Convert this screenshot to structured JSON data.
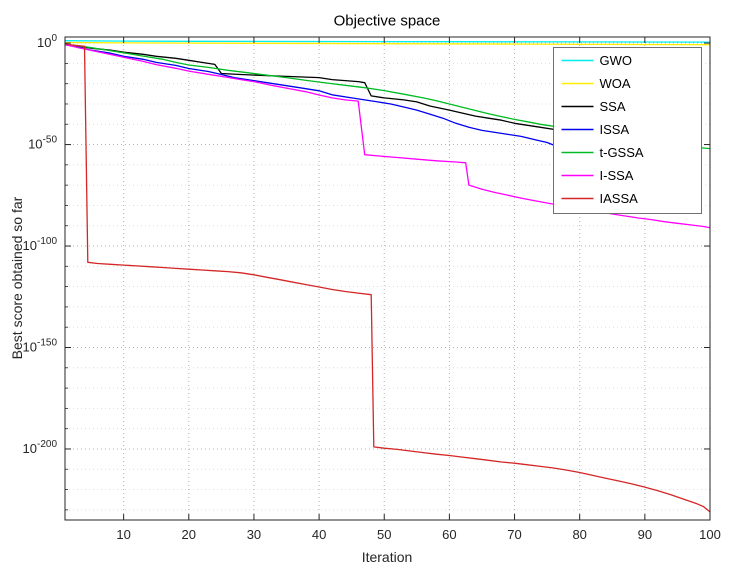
{
  "chart_data": {
    "type": "line",
    "title": "Objective space",
    "xlabel": "Iteration",
    "ylabel": "Best score obtained so far",
    "y_scale": "log10",
    "xlim": [
      1,
      100
    ],
    "ylim_log10": [
      -235,
      3
    ],
    "x_ticks": [
      10,
      20,
      30,
      40,
      50,
      60,
      70,
      80,
      90,
      100
    ],
    "y_tick_exponents": [
      0,
      -50,
      -100,
      -150,
      -200
    ],
    "grid": true,
    "box": true,
    "legend_position": "northeast",
    "series": [
      {
        "name": "GWO",
        "color": "#00EEEE",
        "points": [
          [
            1,
            1.2
          ],
          [
            10,
            1.0
          ],
          [
            20,
            0.9
          ],
          [
            40,
            0.8
          ],
          [
            60,
            0.7
          ],
          [
            80,
            0.6
          ],
          [
            100,
            0.5
          ]
        ]
      },
      {
        "name": "WOA",
        "color": "#FFEE00",
        "points": [
          [
            1,
            0.3
          ],
          [
            10,
            0.1
          ],
          [
            30,
            -0.1
          ],
          [
            50,
            -0.3
          ],
          [
            70,
            -0.5
          ],
          [
            100,
            -0.8
          ]
        ]
      },
      {
        "name": "SSA",
        "color": "#000000",
        "points": [
          [
            1,
            -0.5
          ],
          [
            3,
            -1.5
          ],
          [
            5,
            -2.5
          ],
          [
            8,
            -3.5
          ],
          [
            10,
            -4.5
          ],
          [
            13,
            -5.5
          ],
          [
            15,
            -6.5
          ],
          [
            18,
            -7.5
          ],
          [
            20,
            -8.5
          ],
          [
            22,
            -9.5
          ],
          [
            24,
            -10.5
          ],
          [
            25,
            -15
          ],
          [
            28,
            -15.5
          ],
          [
            32,
            -16
          ],
          [
            36,
            -16.5
          ],
          [
            40,
            -17
          ],
          [
            42,
            -18
          ],
          [
            44,
            -18.5
          ],
          [
            46,
            -19
          ],
          [
            47,
            -19.5
          ],
          [
            48,
            -26
          ],
          [
            50,
            -27
          ],
          [
            53,
            -28
          ],
          [
            55,
            -29
          ],
          [
            57,
            -31
          ],
          [
            60,
            -33
          ],
          [
            62,
            -34.5
          ],
          [
            64,
            -36
          ],
          [
            66,
            -37
          ],
          [
            68,
            -38
          ],
          [
            70,
            -39.5
          ],
          [
            72,
            -40.5
          ],
          [
            74,
            -41.5
          ],
          [
            77,
            -43
          ]
        ]
      },
      {
        "name": "ISSA",
        "color": "#0000EE",
        "points": [
          [
            1,
            -0.8
          ],
          [
            3,
            -2
          ],
          [
            5,
            -3.5
          ],
          [
            8,
            -5
          ],
          [
            10,
            -6.5
          ],
          [
            13,
            -8
          ],
          [
            15,
            -9.5
          ],
          [
            18,
            -11
          ],
          [
            20,
            -12.5
          ],
          [
            23,
            -14
          ],
          [
            25,
            -15.5
          ],
          [
            27,
            -17
          ],
          [
            30,
            -18.5
          ],
          [
            32,
            -19.5
          ],
          [
            35,
            -21
          ],
          [
            37,
            -22
          ],
          [
            40,
            -23.5
          ],
          [
            42,
            -25.5
          ],
          [
            45,
            -27
          ],
          [
            47,
            -28
          ],
          [
            49,
            -29
          ],
          [
            51,
            -30
          ],
          [
            53,
            -31.5
          ],
          [
            55,
            -33
          ],
          [
            57,
            -35
          ],
          [
            59,
            -37
          ],
          [
            61,
            -39.5
          ],
          [
            63,
            -41.5
          ],
          [
            65,
            -43
          ],
          [
            67,
            -44
          ],
          [
            69,
            -45
          ],
          [
            71,
            -46
          ],
          [
            73,
            -47.5
          ],
          [
            75,
            -49
          ],
          [
            77,
            -51.5
          ],
          [
            79,
            -54
          ],
          [
            81,
            -55.5
          ],
          [
            83,
            -56.5
          ],
          [
            85,
            -57
          ]
        ]
      },
      {
        "name": "t-GSSA",
        "color": "#00BB22",
        "points": [
          [
            1,
            -0.6
          ],
          [
            4,
            -1.8
          ],
          [
            7,
            -3.2
          ],
          [
            10,
            -4.8
          ],
          [
            13,
            -6.4
          ],
          [
            16,
            -8
          ],
          [
            18,
            -9.5
          ],
          [
            20,
            -10.8
          ],
          [
            23,
            -12
          ],
          [
            26,
            -13.4
          ],
          [
            29,
            -14.6
          ],
          [
            32,
            -15.8
          ],
          [
            35,
            -17
          ],
          [
            38,
            -18.4
          ],
          [
            41,
            -19.6
          ],
          [
            44,
            -20.8
          ],
          [
            47,
            -22
          ],
          [
            50,
            -23.4
          ],
          [
            53,
            -25.2
          ],
          [
            56,
            -27
          ],
          [
            58,
            -28.4
          ],
          [
            60,
            -30
          ],
          [
            62,
            -31.6
          ],
          [
            64,
            -33.2
          ],
          [
            66,
            -34.8
          ],
          [
            68,
            -36.2
          ],
          [
            70,
            -37.6
          ],
          [
            72,
            -38.8
          ],
          [
            74,
            -40
          ],
          [
            76,
            -41
          ],
          [
            78,
            -42
          ],
          [
            80,
            -43
          ],
          [
            83,
            -44.6
          ],
          [
            86,
            -46
          ],
          [
            89,
            -47.6
          ],
          [
            92,
            -49
          ],
          [
            95,
            -50.4
          ],
          [
            98,
            -51.4
          ],
          [
            100,
            -52
          ]
        ]
      },
      {
        "name": "I-SSA",
        "color": "#FF00FF",
        "points": [
          [
            1,
            -0.7
          ],
          [
            3,
            -2.2
          ],
          [
            5,
            -3.6
          ],
          [
            8,
            -5.6
          ],
          [
            10,
            -7
          ],
          [
            13,
            -9
          ],
          [
            15,
            -10.6
          ],
          [
            18,
            -12.4
          ],
          [
            20,
            -13.8
          ],
          [
            23,
            -15.4
          ],
          [
            25,
            -16.4
          ],
          [
            28,
            -18
          ],
          [
            30,
            -19
          ],
          [
            33,
            -21
          ],
          [
            35,
            -22.2
          ],
          [
            38,
            -24
          ],
          [
            40,
            -25.6
          ],
          [
            42,
            -27
          ],
          [
            44,
            -28
          ],
          [
            46,
            -28.6
          ],
          [
            47,
            -55
          ],
          [
            49,
            -55.6
          ],
          [
            52,
            -56.4
          ],
          [
            55,
            -57.2
          ],
          [
            58,
            -58
          ],
          [
            61,
            -58.6
          ],
          [
            62.5,
            -59
          ],
          [
            63,
            -70
          ],
          [
            65,
            -72
          ],
          [
            67,
            -73.6
          ],
          [
            69,
            -75
          ],
          [
            71,
            -76.4
          ],
          [
            73,
            -77.6
          ],
          [
            75,
            -78.8
          ],
          [
            77,
            -80
          ],
          [
            79,
            -81
          ],
          [
            81,
            -82.2
          ],
          [
            83,
            -83.2
          ],
          [
            85,
            -84.2
          ],
          [
            87,
            -85.2
          ],
          [
            89,
            -86.2
          ],
          [
            91,
            -87
          ],
          [
            93,
            -88
          ],
          [
            95,
            -88.8
          ],
          [
            97,
            -89.6
          ],
          [
            99,
            -90.4
          ],
          [
            100,
            -91
          ]
        ]
      },
      {
        "name": "IASSA",
        "color": "#D42626",
        "points": [
          [
            1,
            -0.4
          ],
          [
            2,
            -0.9
          ],
          [
            3,
            -1.3
          ],
          [
            4,
            -1.6
          ],
          [
            4.5,
            -108
          ],
          [
            6,
            -108.6
          ],
          [
            8,
            -109
          ],
          [
            10,
            -109.4
          ],
          [
            12,
            -109.8
          ],
          [
            14,
            -110.2
          ],
          [
            16,
            -110.6
          ],
          [
            18,
            -111
          ],
          [
            20,
            -111.4
          ],
          [
            22,
            -111.8
          ],
          [
            24,
            -112.2
          ],
          [
            26,
            -112.6
          ],
          [
            28,
            -113.2
          ],
          [
            30,
            -114.2
          ],
          [
            32,
            -115.4
          ],
          [
            34,
            -116.6
          ],
          [
            36,
            -117.8
          ],
          [
            38,
            -119
          ],
          [
            40,
            -120.2
          ],
          [
            42,
            -121.4
          ],
          [
            44,
            -122.4
          ],
          [
            46,
            -123.2
          ],
          [
            48,
            -124
          ],
          [
            48.4,
            -199
          ],
          [
            50,
            -199.6
          ],
          [
            52,
            -200.2
          ],
          [
            54,
            -201
          ],
          [
            56,
            -201.8
          ],
          [
            58,
            -202.6
          ],
          [
            60,
            -203.2
          ],
          [
            62,
            -204
          ],
          [
            64,
            -204.8
          ],
          [
            66,
            -205.6
          ],
          [
            68,
            -206.4
          ],
          [
            70,
            -207
          ],
          [
            72,
            -207.8
          ],
          [
            74,
            -208.6
          ],
          [
            76,
            -209.4
          ],
          [
            78,
            -210.4
          ],
          [
            80,
            -211.6
          ],
          [
            82,
            -213
          ],
          [
            84,
            -214.4
          ],
          [
            86,
            -215.8
          ],
          [
            88,
            -217.2
          ],
          [
            90,
            -218.8
          ],
          [
            92,
            -220.6
          ],
          [
            94,
            -222.6
          ],
          [
            96,
            -224.8
          ],
          [
            98,
            -227
          ],
          [
            99,
            -228.4
          ],
          [
            100,
            -231
          ]
        ]
      }
    ]
  }
}
